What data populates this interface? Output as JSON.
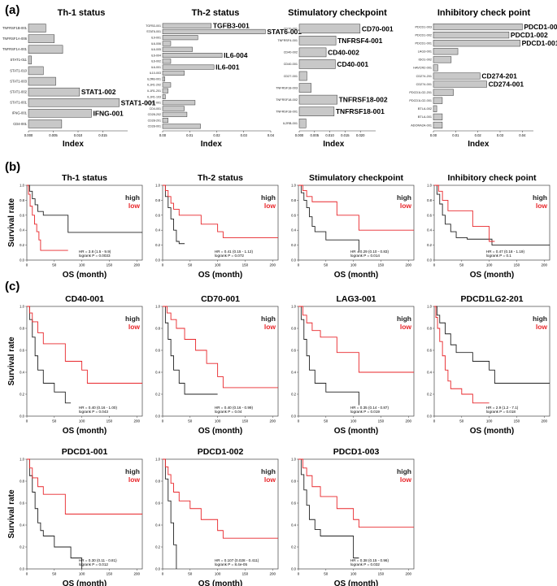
{
  "panels": [
    {
      "letter": "(a)"
    },
    {
      "letter": "(b)"
    },
    {
      "letter": "(c)"
    }
  ],
  "legend": {
    "high": "high",
    "low": "low",
    "high_color": "#222222",
    "low_color": "#e8262a"
  },
  "km_axes": {
    "xlabel": "OS (month)",
    "ylabel": "Survival rate",
    "xticks": [
      0,
      50,
      100,
      150,
      200
    ],
    "yticks": [
      "0.0",
      "0.2",
      "0.4",
      "0.6",
      "0.8",
      "1.0"
    ]
  },
  "chart_data": [
    {
      "type": "bar",
      "id": "th1",
      "title": "Th-1 status",
      "xlabel": "Index",
      "xlim": [
        0,
        0.02
      ],
      "xticks": [
        "0.000",
        "0.005",
        "0.010",
        "0.015"
      ],
      "categories": [
        "TNFRSF1B-001",
        "TNFRSF1A-006",
        "TNFRSF1A-001",
        "STAT1-011",
        "STAT1-010",
        "STAT1-003",
        "STAT1-002",
        "STAT1-001",
        "IFNG-001",
        "CD4-001"
      ],
      "values": [
        0.0035,
        0.0052,
        0.0069,
        0.0006,
        0.003,
        0.0055,
        0.0103,
        0.0183,
        0.0127,
        0.0067
      ],
      "highlight": [
        "",
        "",
        "",
        "",
        "",
        "",
        "STAT1-002",
        "STAT1-001",
        "IFNG-001",
        ""
      ]
    },
    {
      "type": "bar",
      "id": "th2",
      "title": "Th-2 status",
      "xlabel": "Index",
      "xlim": [
        0,
        0.04
      ],
      "xticks": [
        "0.00",
        "0.01",
        "0.02",
        "0.03",
        "0.04"
      ],
      "categories": [
        "TGFB3-001",
        "STAT6-001",
        "IL9-001",
        "IL6-006",
        "IL6-005",
        "IL6-004",
        "IL6-002",
        "IL6-001",
        "IL10-003",
        "IL2RB-001",
        "IL1R1-202",
        "IL1R1-201",
        "IL1R1-103",
        "IL1R1-001",
        "CD4-001",
        "CD28-202",
        "CD28-201",
        "CD28-001"
      ],
      "values": [
        0.018,
        0.038,
        0.013,
        0.003,
        0.011,
        0.022,
        0.003,
        0.019,
        0.008,
        0.0008,
        0.003,
        0.002,
        0.001,
        0.012,
        0.008,
        0.009,
        0.002,
        0.014
      ],
      "highlight": [
        "TGFB3-001",
        "STAT6-001",
        "",
        "",
        "",
        "IL6-004",
        "",
        "IL6-001",
        "",
        "",
        "",
        "",
        "",
        "",
        "",
        "",
        "",
        ""
      ]
    },
    {
      "type": "bar",
      "id": "stim",
      "title": "Stimulatory checkpoint",
      "xlabel": "Index",
      "xlim": [
        0,
        0.025
      ],
      "xticks": [
        "0.000",
        "0.005",
        "0.010",
        "0.015",
        "0.020"
      ],
      "categories": [
        "CD70-001",
        "TNFRSF4-001",
        "CD40-002",
        "CD40-001",
        "CD27-001",
        "TNFRSF18-003",
        "TNFRSF18-002",
        "TNFRSF18-001",
        "IL2RB-001"
      ],
      "values": [
        0.0199,
        0.012,
        0.0088,
        0.0118,
        0.0025,
        0.0039,
        0.0124,
        0.0114,
        0.0022
      ],
      "highlight": [
        "CD70-001",
        "TNFRSF4-001",
        "CD40-002",
        "CD40-001",
        "",
        "",
        "TNFRSF18-002",
        "TNFRSF18-001",
        ""
      ]
    },
    {
      "type": "bar",
      "id": "inhib",
      "title": "Inhibitory check point",
      "xlabel": "Index",
      "xlim": [
        0,
        0.045
      ],
      "xticks": [
        "0.00",
        "0.01",
        "0.02",
        "0.03",
        "0.04"
      ],
      "categories": [
        "PDCD1-003",
        "PDCD1-002",
        "PDCD1-001",
        "LAG3-001",
        "IDO1-002",
        "HAVCR2-001",
        "CD274-201",
        "CD274-001",
        "PDCD1LG2-201",
        "PDCD1LG2-001",
        "BTLA-002",
        "BTLA-001",
        "ADORA2A-001"
      ],
      "values": [
        0.04,
        0.034,
        0.039,
        0.011,
        0.008,
        0.002,
        0.021,
        0.024,
        0.009,
        0.004,
        0.0015,
        0.004,
        0.004
      ],
      "highlight": [
        "PDCD1-003",
        "PDCD1-002",
        "PDCD1-001",
        "",
        "",
        "",
        "CD274-201",
        "CD274-001",
        "",
        "",
        "",
        "",
        ""
      ]
    },
    {
      "type": "line",
      "id": "km_b1",
      "title": "Th-1 status",
      "xlabel": "OS (month)",
      "ylabel": "Survival rate",
      "xlim": [
        0,
        210
      ],
      "ylim": [
        0,
        1
      ],
      "series": [
        {
          "name": "high",
          "x": [
            0,
            5,
            10,
            15,
            20,
            30,
            40,
            75,
            110,
            210
          ],
          "y": [
            1,
            0.92,
            0.82,
            0.74,
            0.65,
            0.6,
            0.6,
            0.37,
            0.37,
            0.37
          ]
        },
        {
          "name": "low",
          "x": [
            0,
            3,
            6,
            10,
            14,
            18,
            22,
            25,
            28,
            75
          ],
          "y": [
            1,
            0.88,
            0.72,
            0.6,
            0.48,
            0.38,
            0.27,
            0.13,
            0.13,
            0.13
          ]
        }
      ],
      "stats": [
        "HR = 3.8 (1.5 - 9.9)",
        "logrank P = 0.0033"
      ]
    },
    {
      "type": "line",
      "id": "km_b2",
      "title": "Th-2 status",
      "xlabel": "OS (month)",
      "ylabel": "Survival rate",
      "xlim": [
        0,
        210
      ],
      "ylim": [
        0,
        1
      ],
      "series": [
        {
          "name": "high",
          "x": [
            0,
            5,
            10,
            15,
            20,
            25,
            30,
            40
          ],
          "y": [
            1,
            0.85,
            0.7,
            0.55,
            0.4,
            0.25,
            0.22,
            0.22
          ]
        },
        {
          "name": "low",
          "x": [
            0,
            5,
            10,
            15,
            20,
            30,
            70,
            100,
            110,
            210
          ],
          "y": [
            1,
            0.93,
            0.85,
            0.76,
            0.68,
            0.6,
            0.48,
            0.38,
            0.3,
            0.3
          ]
        }
      ],
      "stats": [
        "HR = 0.41 (0.15 - 1.12)",
        "logrank P = 0.072"
      ]
    },
    {
      "type": "line",
      "id": "km_b3",
      "title": "Stimulatory checkpoint",
      "xlabel": "OS (month)",
      "ylabel": "Survival rate",
      "xlim": [
        0,
        210
      ],
      "ylim": [
        0,
        1
      ],
      "series": [
        {
          "name": "high",
          "x": [
            0,
            5,
            10,
            15,
            20,
            25,
            30,
            50,
            70,
            110
          ],
          "y": [
            1,
            0.9,
            0.8,
            0.7,
            0.58,
            0.45,
            0.38,
            0.27,
            0.27,
            0.1
          ]
        },
        {
          "name": "low",
          "x": [
            0,
            8,
            15,
            25,
            40,
            70,
            110,
            210
          ],
          "y": [
            1,
            0.93,
            0.85,
            0.78,
            0.78,
            0.6,
            0.4,
            0.4
          ]
        }
      ],
      "stats": [
        "HR = 0.29 (0.10 - 0.83)",
        "logrank P = 0.014"
      ]
    },
    {
      "type": "line",
      "id": "km_b4",
      "title": "Inhibitory check point",
      "xlabel": "OS (month)",
      "ylabel": "Survival rate",
      "xlim": [
        0,
        210
      ],
      "ylim": [
        0,
        1
      ],
      "series": [
        {
          "name": "high",
          "x": [
            0,
            5,
            10,
            15,
            20,
            30,
            40,
            60,
            105,
            210
          ],
          "y": [
            1,
            0.88,
            0.75,
            0.6,
            0.48,
            0.38,
            0.3,
            0.28,
            0.2,
            0.2
          ]
        },
        {
          "name": "low",
          "x": [
            0,
            8,
            15,
            25,
            40,
            70,
            100,
            110
          ],
          "y": [
            1,
            0.92,
            0.8,
            0.66,
            0.66,
            0.45,
            0.25,
            0.25
          ]
        }
      ],
      "stats": [
        "HR = 0.47 (0.18 - 1.19)",
        "logrank P = 0.1"
      ]
    },
    {
      "type": "line",
      "id": "km_c1",
      "title": "CD40-001",
      "xlabel": "OS (month)",
      "ylabel": "Survival rate",
      "xlim": [
        0,
        210
      ],
      "ylim": [
        0,
        1
      ],
      "series": [
        {
          "name": "high",
          "x": [
            0,
            5,
            10,
            15,
            20,
            30,
            50,
            70,
            80
          ],
          "y": [
            1,
            0.88,
            0.72,
            0.55,
            0.42,
            0.3,
            0.22,
            0.12,
            0.12
          ]
        },
        {
          "name": "low",
          "x": [
            0,
            5,
            10,
            20,
            30,
            70,
            100,
            110,
            210
          ],
          "y": [
            1,
            0.94,
            0.86,
            0.76,
            0.66,
            0.5,
            0.42,
            0.3,
            0.3
          ]
        }
      ],
      "stats": [
        "HR = 0.40 (0.16 - 1.00)",
        "logrank P = 0.043"
      ]
    },
    {
      "type": "line",
      "id": "km_c2",
      "title": "CD70-001",
      "xlabel": "OS (month)",
      "ylabel": "Survival rate",
      "xlim": [
        0,
        210
      ],
      "ylim": [
        0,
        1
      ],
      "series": [
        {
          "name": "high",
          "x": [
            0,
            5,
            10,
            15,
            20,
            30,
            40,
            60,
            100
          ],
          "y": [
            1,
            0.85,
            0.7,
            0.55,
            0.42,
            0.3,
            0.2,
            0.2,
            0.2
          ]
        },
        {
          "name": "low",
          "x": [
            0,
            8,
            15,
            25,
            40,
            60,
            80,
            100,
            110,
            210
          ],
          "y": [
            1,
            0.94,
            0.88,
            0.8,
            0.7,
            0.6,
            0.48,
            0.36,
            0.26,
            0.26
          ]
        }
      ],
      "stats": [
        "HR = 0.40 (0.16 - 0.99)",
        "logrank P = 0.04"
      ]
    },
    {
      "type": "line",
      "id": "km_c3",
      "title": "LAG3-001",
      "xlabel": "OS (month)",
      "ylabel": "Survival rate",
      "xlim": [
        0,
        210
      ],
      "ylim": [
        0,
        1
      ],
      "series": [
        {
          "name": "high",
          "x": [
            0,
            5,
            10,
            15,
            20,
            30,
            50,
            70,
            110
          ],
          "y": [
            1,
            0.88,
            0.7,
            0.55,
            0.42,
            0.3,
            0.22,
            0.22,
            0.1
          ]
        },
        {
          "name": "low",
          "x": [
            0,
            8,
            15,
            25,
            40,
            70,
            110,
            210
          ],
          "y": [
            1,
            0.92,
            0.85,
            0.78,
            0.72,
            0.58,
            0.4,
            0.4
          ]
        }
      ],
      "stats": [
        "HR = 0.35 (0.14 - 0.87)",
        "logrank P = 0.019"
      ]
    },
    {
      "type": "line",
      "id": "km_c4",
      "title": "PDCD1LG2-201",
      "xlabel": "OS (month)",
      "ylabel": "Survival rate",
      "xlim": [
        0,
        210
      ],
      "ylim": [
        0,
        1
      ],
      "series": [
        {
          "name": "high",
          "x": [
            0,
            5,
            10,
            20,
            30,
            40,
            70,
            100,
            110,
            210
          ],
          "y": [
            1,
            0.92,
            0.85,
            0.75,
            0.65,
            0.58,
            0.5,
            0.42,
            0.3,
            0.3
          ]
        },
        {
          "name": "low",
          "x": [
            0,
            3,
            6,
            10,
            15,
            20,
            25,
            30,
            50,
            70,
            100
          ],
          "y": [
            1,
            0.9,
            0.8,
            0.68,
            0.55,
            0.42,
            0.32,
            0.25,
            0.2,
            0.12,
            0.12
          ]
        }
      ],
      "stats": [
        "HR = 2.9 (1.2 - 7.1)",
        "logrank P = 0.018"
      ]
    },
    {
      "type": "line",
      "id": "km_c5",
      "title": "PDCD1-001",
      "xlabel": "OS (month)",
      "ylabel": "Survival rate",
      "xlim": [
        0,
        210
      ],
      "ylim": [
        0,
        1
      ],
      "series": [
        {
          "name": "high",
          "x": [
            0,
            5,
            10,
            15,
            20,
            25,
            30,
            50,
            80,
            100
          ],
          "y": [
            1,
            0.85,
            0.7,
            0.55,
            0.42,
            0.35,
            0.3,
            0.2,
            0.1,
            0.0
          ]
        },
        {
          "name": "low",
          "x": [
            0,
            5,
            10,
            20,
            30,
            70,
            210
          ],
          "y": [
            1,
            0.92,
            0.83,
            0.75,
            0.68,
            0.5,
            0.5
          ]
        }
      ],
      "stats": [
        "HR = 0.30 (0.11 - 0.81)",
        "logrank P = 0.012"
      ]
    },
    {
      "type": "line",
      "id": "km_c6",
      "title": "PDCD1-002",
      "xlabel": "OS (month)",
      "ylabel": "Survival rate",
      "xlim": [
        0,
        210
      ],
      "ylim": [
        0,
        1
      ],
      "series": [
        {
          "name": "high",
          "x": [
            0,
            5,
            10,
            15,
            20,
            25
          ],
          "y": [
            1,
            0.82,
            0.62,
            0.42,
            0.22,
            0.0
          ]
        },
        {
          "name": "low",
          "x": [
            0,
            5,
            10,
            15,
            20,
            30,
            50,
            70,
            100,
            110,
            210
          ],
          "y": [
            1,
            0.93,
            0.86,
            0.78,
            0.7,
            0.62,
            0.55,
            0.45,
            0.35,
            0.28,
            0.28
          ]
        }
      ],
      "stats": [
        "HR = 0.107 (0.028 - 0.411)",
        "logrank P = 8.4e-05"
      ]
    },
    {
      "type": "line",
      "id": "km_c7",
      "title": "PDCD1-003",
      "xlabel": "OS (month)",
      "ylabel": "Survival rate",
      "xlim": [
        0,
        210
      ],
      "ylim": [
        0,
        1
      ],
      "series": [
        {
          "name": "high",
          "x": [
            0,
            5,
            10,
            15,
            20,
            30,
            40,
            70,
            100,
            110
          ],
          "y": [
            1,
            0.86,
            0.72,
            0.58,
            0.45,
            0.36,
            0.3,
            0.3,
            0.1,
            0.1
          ]
        },
        {
          "name": "low",
          "x": [
            0,
            8,
            15,
            25,
            40,
            70,
            100,
            110,
            210
          ],
          "y": [
            1,
            0.92,
            0.85,
            0.75,
            0.66,
            0.55,
            0.45,
            0.38,
            0.38
          ]
        }
      ],
      "stats": [
        "HR = 0.38 (0.15 - 0.96)",
        "logrank P = 0.032"
      ]
    }
  ]
}
